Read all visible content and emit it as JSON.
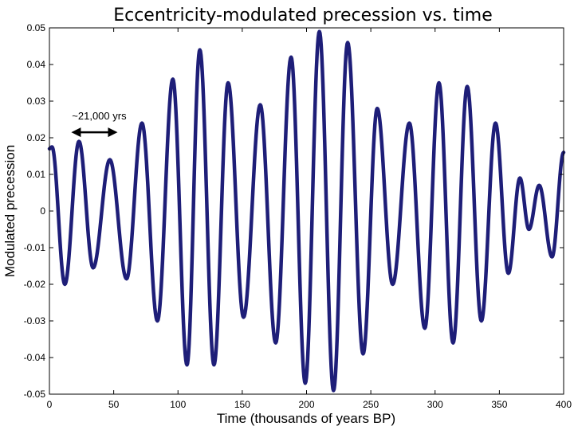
{
  "chart_data": {
    "type": "line",
    "title": "Eccentricity-modulated precession vs. time",
    "xlabel": "Time (thousands of years BP)",
    "ylabel": "Modulated precession",
    "xlim": [
      0,
      400
    ],
    "ylim": [
      -0.05,
      0.05
    ],
    "xticks": [
      0,
      50,
      100,
      150,
      200,
      250,
      300,
      350,
      400
    ],
    "xtick_labels": [
      "0",
      "50",
      "100",
      "150",
      "200",
      "250",
      "300",
      "350",
      "400"
    ],
    "yticks": [
      0.05,
      0.04,
      0.03,
      0.02,
      0.01,
      0,
      -0.01,
      -0.02,
      -0.03,
      -0.04,
      -0.05
    ],
    "ytick_labels": [
      "0.05",
      "0.04",
      "0.03",
      "0.02",
      "0.01",
      "0",
      "-0.01",
      "-0.02",
      "-0.03",
      "-0.04",
      "-0.05"
    ],
    "grid": false,
    "line_color": "#1e1e78",
    "series": [
      {
        "name": "Modulated precession",
        "extrema": [
          {
            "x": 0,
            "y": 0.017
          },
          {
            "x": 2,
            "y": 0.0175
          },
          {
            "x": 12,
            "y": -0.02
          },
          {
            "x": 23,
            "y": 0.019
          },
          {
            "x": 34,
            "y": -0.0155
          },
          {
            "x": 47,
            "y": 0.014
          },
          {
            "x": 60,
            "y": -0.0185
          },
          {
            "x": 72,
            "y": 0.024
          },
          {
            "x": 84,
            "y": -0.03
          },
          {
            "x": 96,
            "y": 0.036
          },
          {
            "x": 107,
            "y": -0.042
          },
          {
            "x": 117,
            "y": 0.044
          },
          {
            "x": 128,
            "y": -0.042
          },
          {
            "x": 139,
            "y": 0.035
          },
          {
            "x": 151,
            "y": -0.029
          },
          {
            "x": 164,
            "y": 0.029
          },
          {
            "x": 176,
            "y": -0.036
          },
          {
            "x": 188,
            "y": 0.042
          },
          {
            "x": 199,
            "y": -0.047
          },
          {
            "x": 210,
            "y": 0.049
          },
          {
            "x": 221,
            "y": -0.049
          },
          {
            "x": 232,
            "y": 0.046
          },
          {
            "x": 244,
            "y": -0.039
          },
          {
            "x": 255,
            "y": 0.028
          },
          {
            "x": 267,
            "y": -0.02
          },
          {
            "x": 280,
            "y": 0.024
          },
          {
            "x": 292,
            "y": -0.032
          },
          {
            "x": 303,
            "y": 0.035
          },
          {
            "x": 314,
            "y": -0.036
          },
          {
            "x": 325,
            "y": 0.034
          },
          {
            "x": 336,
            "y": -0.03
          },
          {
            "x": 347,
            "y": 0.024
          },
          {
            "x": 357,
            "y": -0.017
          },
          {
            "x": 366,
            "y": 0.009
          },
          {
            "x": 373,
            "y": -0.005
          },
          {
            "x": 381,
            "y": 0.007
          },
          {
            "x": 391,
            "y": -0.0125
          },
          {
            "x": 400,
            "y": 0.016
          }
        ]
      }
    ],
    "annotations": [
      {
        "text": "~21,000 yrs",
        "x_from": 17,
        "x_to": 53,
        "y": 0.0215
      }
    ]
  }
}
